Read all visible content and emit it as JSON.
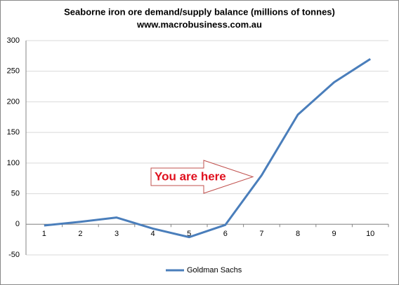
{
  "chart_data": {
    "type": "line",
    "title": "Seaborne iron ore demand/supply balance (millions of tonnes)",
    "subtitle": "www.macrobusiness.com.au",
    "categories": [
      "1",
      "2",
      "3",
      "4",
      "5",
      "6",
      "7",
      "8",
      "9",
      "10"
    ],
    "series": [
      {
        "name": "Goldman Sachs",
        "color": "#4a7ebb",
        "values": [
          -2,
          4,
          11,
          -7,
          -21,
          -1,
          80,
          179,
          232,
          270
        ]
      }
    ],
    "ylim": [
      -50,
      300
    ],
    "yticks": [
      -50,
      0,
      50,
      100,
      150,
      200,
      250,
      300
    ],
    "grid": true,
    "legend": "bottom",
    "annotation": "You are here"
  }
}
